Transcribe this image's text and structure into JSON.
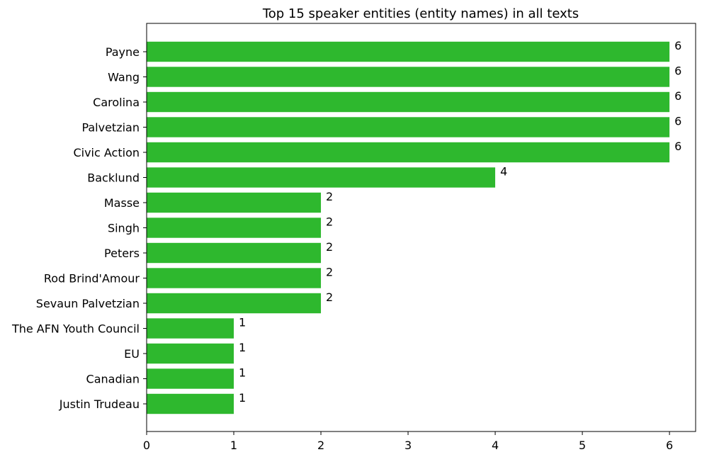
{
  "chart_data": {
    "type": "bar",
    "orientation": "horizontal",
    "title": "Top 15 speaker entities (entity names) in all texts",
    "xlabel": "",
    "ylabel": "",
    "categories": [
      "Payne",
      "Wang",
      "Carolina",
      "Palvetzian",
      "Civic Action",
      "Backlund",
      "Masse",
      "Singh",
      "Peters",
      "Rod Brind'Amour",
      "Sevaun Palvetzian",
      "The AFN Youth Council",
      "EU",
      "Canadian",
      "Justin Trudeau"
    ],
    "values": [
      6,
      6,
      6,
      6,
      6,
      4,
      2,
      2,
      2,
      2,
      2,
      1,
      1,
      1,
      1
    ],
    "xlim": [
      0,
      6.3
    ],
    "xticks": [
      "0",
      "1",
      "2",
      "3",
      "4",
      "5",
      "6"
    ],
    "grid": false,
    "bar_color": "#2eb82e",
    "data_labels": true
  }
}
